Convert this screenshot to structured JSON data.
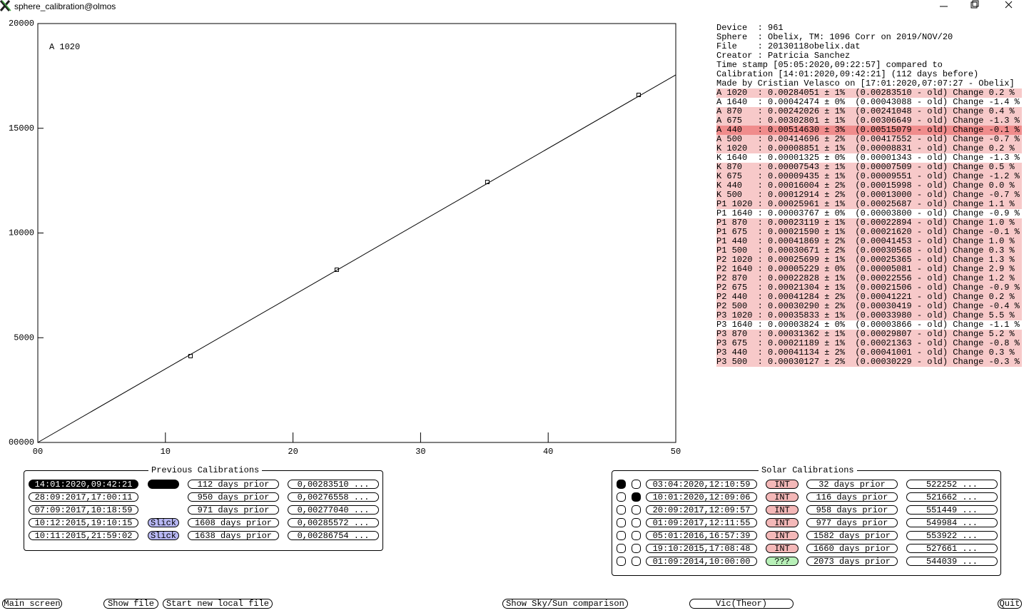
{
  "window": {
    "title": "sphere_calibration@olmos"
  },
  "chart_data": {
    "type": "scatter",
    "annotation": "A 1020",
    "x": [
      11.97,
      23.43,
      35.23,
      47.09
    ],
    "values": [
      4123,
      8245,
      12436,
      16593
    ],
    "color": "#000000",
    "fit": {
      "x": [
        0,
        50
      ],
      "values": [
        0,
        17550
      ],
      "color": "#000000"
    },
    "xlim": [
      0,
      50
    ],
    "xticks": [
      {
        "value": 0,
        "label": "00"
      },
      10,
      20,
      30,
      40,
      50
    ],
    "ylim": [
      0,
      20000
    ],
    "yticks": [
      {
        "value": 0,
        "label": "00000"
      },
      5000,
      10000,
      15000,
      20000
    ]
  },
  "info": {
    "header": [
      "Device  : 961",
      "Sphere  : Obelix, TM: 1096 Corr on 2019/NOV/20",
      "File    : 20130118obelix.dat",
      "Creator : Patricia Sanchez",
      "Time stamp [05:05:2020,09:22:57] compared to",
      "Calibration [14:01:2020,09:42:21] (112 days before)",
      "Made by Cristian Velasco on [17:01:2020,07:07:27 - Obelix]"
    ],
    "rows": [
      {
        "text": "A 1020  : 0.00284051 ± 1%  (0.00283510 - old) Change 0.2 %",
        "highlight": "pink"
      },
      {
        "text": "A 1640  : 0.00042474 ± 0%  (0.00043088 - old) Change -1.4 %",
        "highlight": "none"
      },
      {
        "text": "A 870   : 0.00242026 ± 1%  (0.00241048 - old) Change 0.4 %",
        "highlight": "pink"
      },
      {
        "text": "A 675   : 0.00302801 ± 1%  (0.00306649 - old) Change -1.3 %",
        "highlight": "pink"
      },
      {
        "text": "A 440   : 0.00514630 ± 3%  (0.00515079 - old) Change -0.1 %",
        "highlight": "red"
      },
      {
        "text": "A 500   : 0.00414696 ± 2%  (0.00417552 - old) Change -0.7 %",
        "highlight": "pink"
      },
      {
        "text": "K 1020  : 0.00008851 ± 1%  (0.00008831 - old) Change 0.2 %",
        "highlight": "pink"
      },
      {
        "text": "K 1640  : 0.00001325 ± 0%  (0.00001343 - old) Change -1.3 %",
        "highlight": "none"
      },
      {
        "text": "K 870   : 0.00007543 ± 1%  (0.00007509 - old) Change 0.5 %",
        "highlight": "pink"
      },
      {
        "text": "K 675   : 0.00009435 ± 1%  (0.00009551 - old) Change -1.2 %",
        "highlight": "pink"
      },
      {
        "text": "K 440   : 0.00016004 ± 2%  (0.00015998 - old) Change 0.0 %",
        "highlight": "pink"
      },
      {
        "text": "K 500   : 0.00012914 ± 2%  (0.00013000 - old) Change -0.7 %",
        "highlight": "pink"
      },
      {
        "text": "P1 1020 : 0.00025961 ± 1%  (0.00025687 - old) Change 1.1 %",
        "highlight": "pink"
      },
      {
        "text": "P1 1640 : 0.00003767 ± 0%  (0.00003800 - old) Change -0.9 %",
        "highlight": "none"
      },
      {
        "text": "P1 870  : 0.00023119 ± 1%  (0.00022894 - old) Change 1.0 %",
        "highlight": "pink"
      },
      {
        "text": "P1 675  : 0.00021590 ± 1%  (0.00021620 - old) Change -0.1 %",
        "highlight": "pink"
      },
      {
        "text": "P1 440  : 0.00041869 ± 2%  (0.00041453 - old) Change 1.0 %",
        "highlight": "pink"
      },
      {
        "text": "P1 500  : 0.00030671 ± 2%  (0.00030568 - old) Change 0.3 %",
        "highlight": "pink"
      },
      {
        "text": "P2 1020 : 0.00025699 ± 1%  (0.00025365 - old) Change 1.3 %",
        "highlight": "pink"
      },
      {
        "text": "P2 1640 : 0.00005229 ± 0%  (0.00005081 - old) Change 2.9 %",
        "highlight": "pink"
      },
      {
        "text": "P2 870  : 0.00022828 ± 1%  (0.00022556 - old) Change 1.2 %",
        "highlight": "pink"
      },
      {
        "text": "P2 675  : 0.00021304 ± 1%  (0.00021506 - old) Change -0.9 %",
        "highlight": "pink"
      },
      {
        "text": "P2 440  : 0.00041284 ± 2%  (0.00041221 - old) Change 0.2 %",
        "highlight": "pink"
      },
      {
        "text": "P2 500  : 0.00030290 ± 2%  (0.00030419 - old) Change -0.4 %",
        "highlight": "pink"
      },
      {
        "text": "P3 1020 : 0.00035833 ± 1%  (0.00033980 - old) Change 5.5 %",
        "highlight": "pink"
      },
      {
        "text": "P3 1640 : 0.00003824 ± 0%  (0.00003866 - old) Change -1.1 %",
        "highlight": "none"
      },
      {
        "text": "P3 870  : 0.00031362 ± 1%  (0.00029807 - old) Change 5.2 %",
        "highlight": "pink"
      },
      {
        "text": "P3 675  : 0.00021189 ± 1%  (0.00021363 - old) Change -0.8 %",
        "highlight": "pink"
      },
      {
        "text": "P3 440  : 0.00041134 ± 2%  (0.00041001 - old) Change 0.3 %",
        "highlight": "pink"
      },
      {
        "text": "P3 500  : 0.00030127 ± 2%  (0.00030229 - old) Change -0.3 %",
        "highlight": "pink"
      }
    ]
  },
  "previous_calibrations": {
    "title": "Previous Calibrations",
    "rows": [
      {
        "date": "14:01:2020,09:42:21",
        "selected": true,
        "days": "112 days prior",
        "value": "0,00283510 ..."
      },
      {
        "date": "28:09:2017,17:00:11",
        "days": "950 days prior",
        "value": "0,00276558 ..."
      },
      {
        "date": "07:09:2017,10:18:59",
        "days": "971 days prior",
        "value": "0,00277040 ..."
      },
      {
        "date": "10:12:2015,19:10:15",
        "tag": "Slick",
        "days": "1608 days prior",
        "value": "0,00285572 ..."
      },
      {
        "date": "10:11:2015,21:59:02",
        "tag": "Slick",
        "days": "1638 days prior",
        "value": "0,00286754 ..."
      }
    ]
  },
  "solar_calibrations": {
    "title": "Solar Calibrations",
    "rows": [
      {
        "radio": "first",
        "date": "03:04:2020,12:10:59",
        "type": "INT",
        "days": "32 days prior",
        "value": "522252 ..."
      },
      {
        "radio": "second",
        "date": "10:01:2020,12:09:06",
        "type": "INT",
        "days": "116 days prior",
        "value": "521662 ..."
      },
      {
        "date": "20:09:2017,12:09:57",
        "type": "INT",
        "days": "958 days prior",
        "value": "551449 ..."
      },
      {
        "date": "01:09:2017,12:11:55",
        "type": "INT",
        "days": "977 days prior",
        "value": "549984 ..."
      },
      {
        "date": "05:01:2016,16:57:39",
        "type": "INT",
        "days": "1582 days prior",
        "value": "553922 ..."
      },
      {
        "date": "19:10:2015,17:08:48",
        "type": "INT",
        "days": "1660 days prior",
        "value": "527661 ..."
      },
      {
        "date": "01:09:2014,10:00:00",
        "type": "???",
        "days": "2073 days prior",
        "value": "544039 ..."
      }
    ]
  },
  "buttons": [
    "Main screen",
    "Show file",
    "Start new local file",
    "Show Sky/Sun comparison",
    "Vic(Theor)",
    "Quit"
  ]
}
